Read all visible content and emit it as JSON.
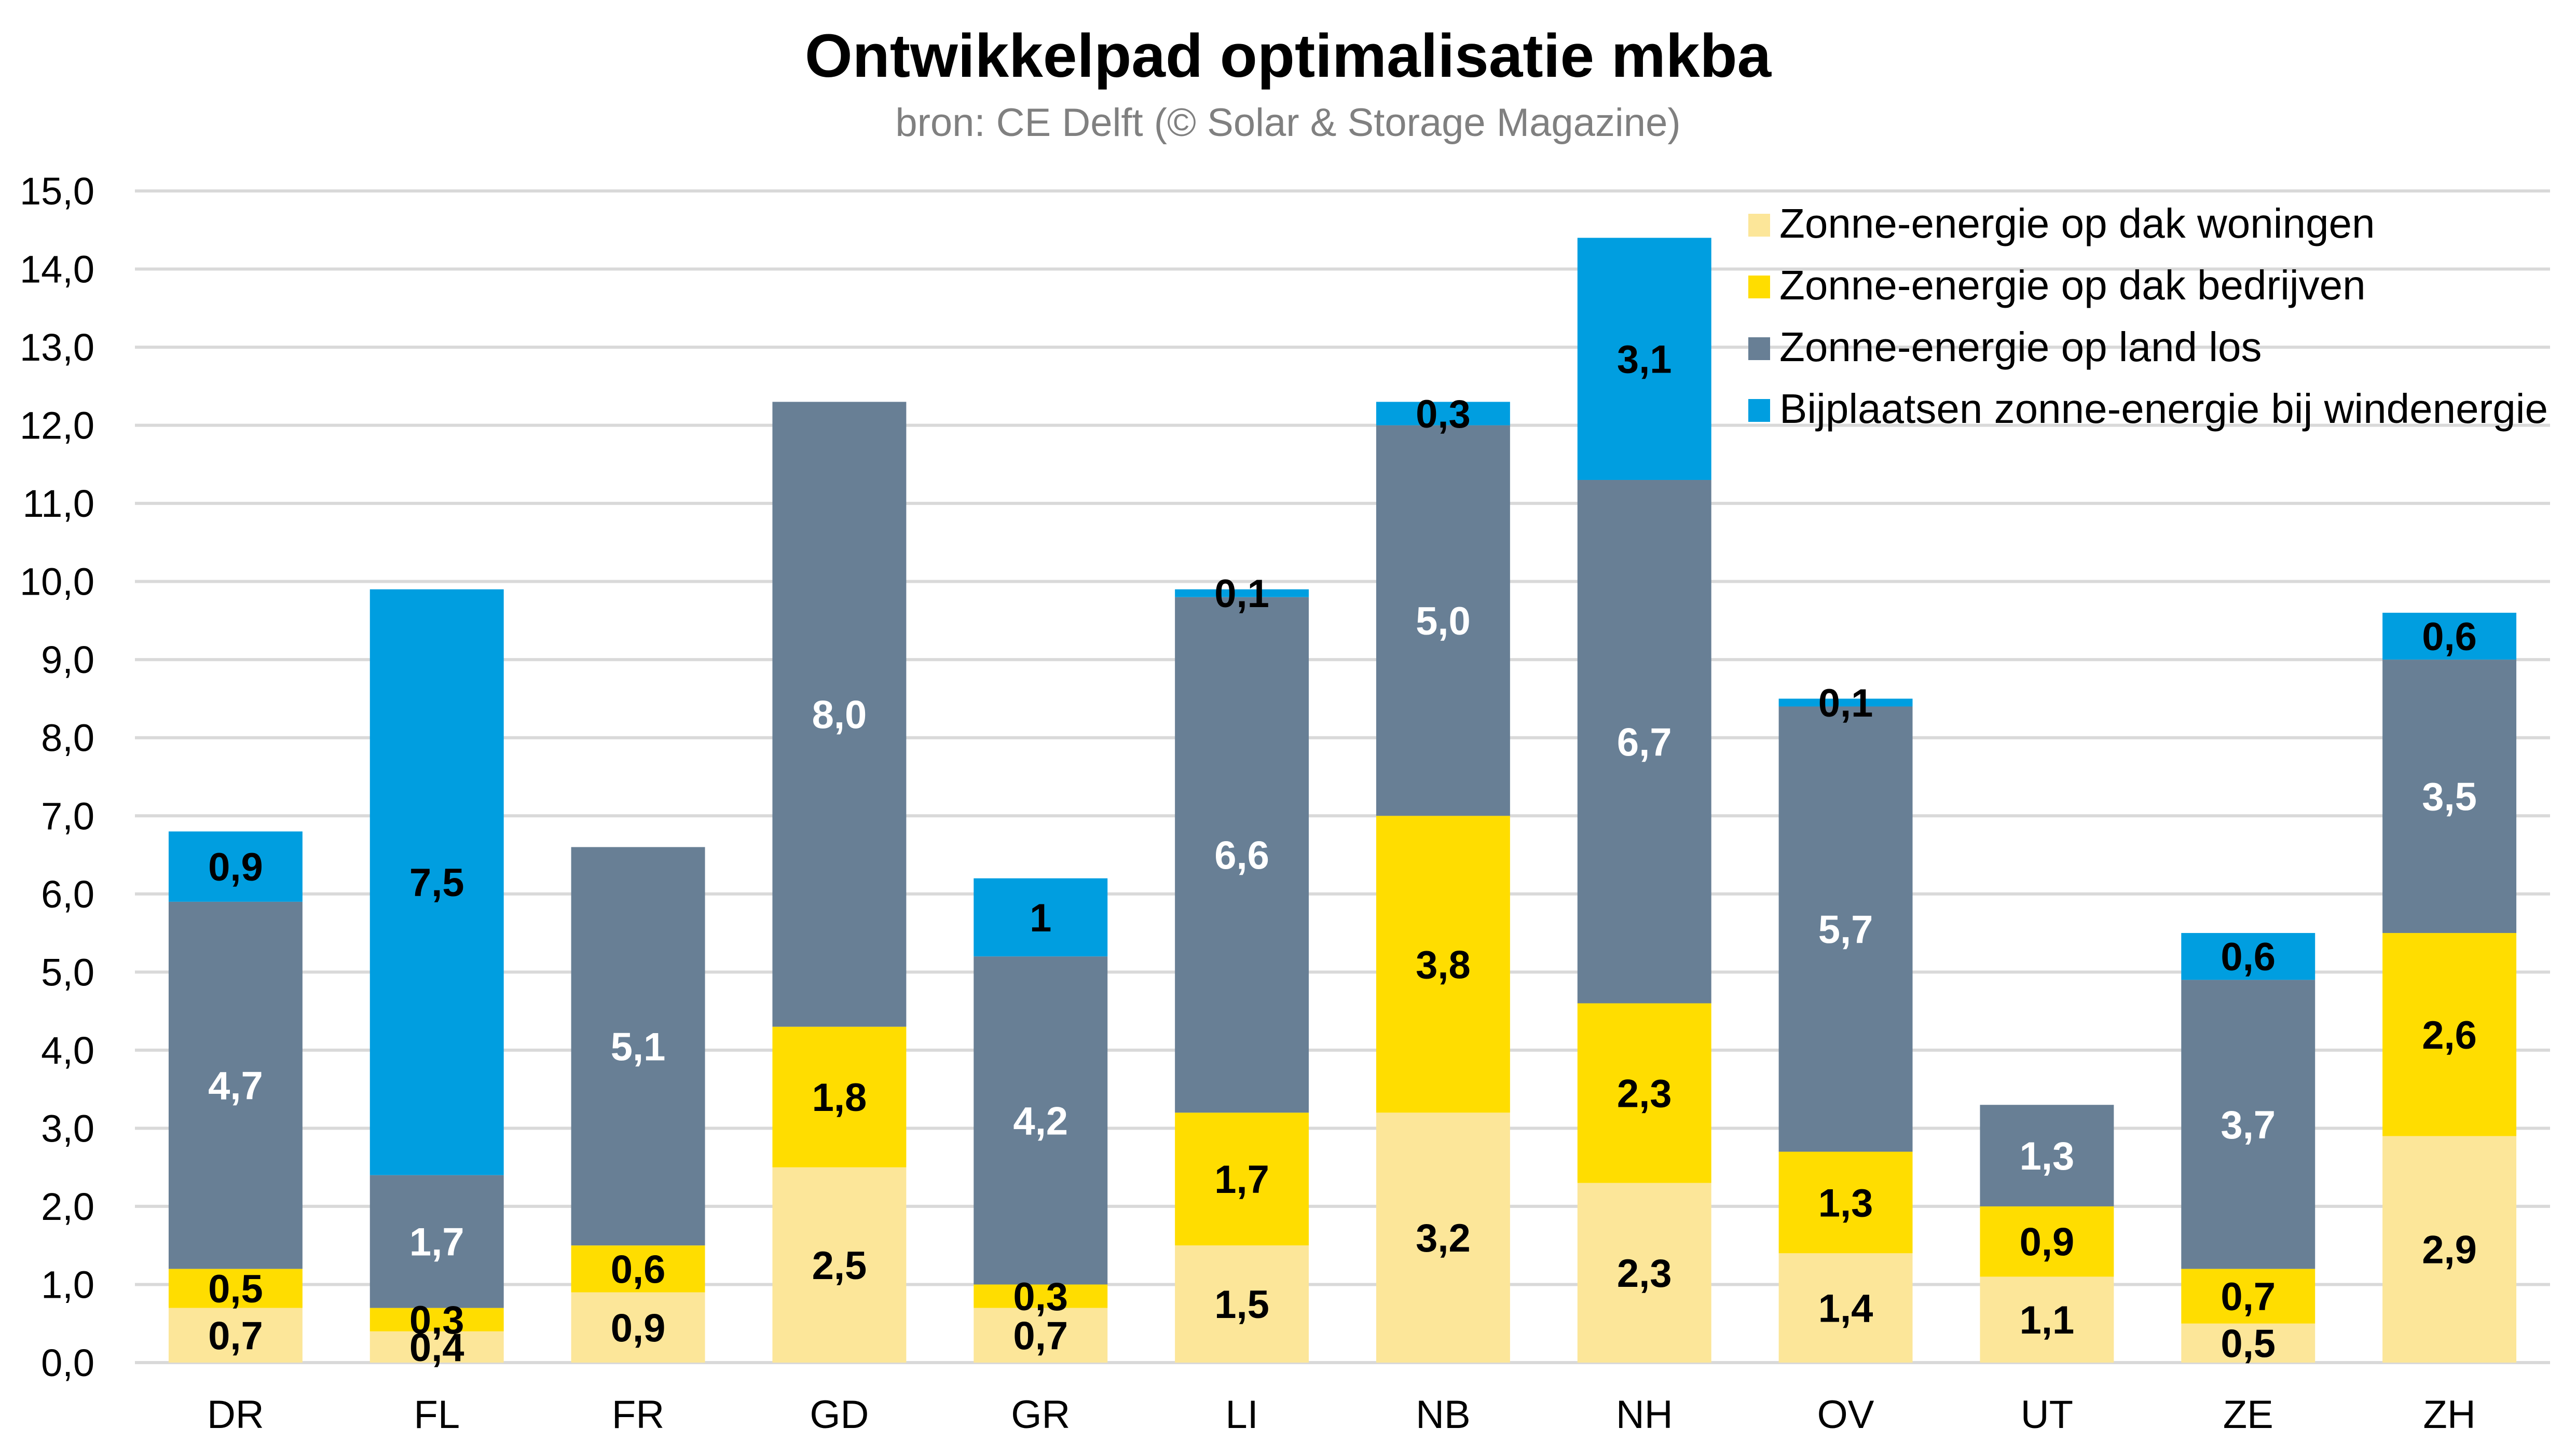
{
  "chart_data": {
    "type": "bar",
    "stacked": true,
    "title": "Ontwikkelpad optimalisatie mkba",
    "subtitle": "bron: CE Delft (© Solar & Storage Magazine)",
    "xlabel": "",
    "ylabel": "",
    "ylim": [
      0,
      15
    ],
    "yticks": [
      0,
      1,
      2,
      3,
      4,
      5,
      6,
      7,
      8,
      9,
      10,
      11,
      12,
      13,
      14,
      15
    ],
    "ytick_labels": [
      "0,0",
      "1,0",
      "2,0",
      "3,0",
      "4,0",
      "5,0",
      "6,0",
      "7,0",
      "8,0",
      "9,0",
      "10,0",
      "11,0",
      "12,0",
      "13,0",
      "14,0",
      "15,0"
    ],
    "grid": true,
    "legend_position": "top-right",
    "categories": [
      "DR",
      "FL",
      "FR",
      "GD",
      "GR",
      "LI",
      "NB",
      "NH",
      "OV",
      "UT",
      "ZE",
      "ZH"
    ],
    "series": [
      {
        "name": "Zonne-energie op dak woningen",
        "color": "#FCE699",
        "label_color": "#000000",
        "values": [
          0.7,
          0.4,
          0.9,
          2.5,
          0.7,
          1.5,
          3.2,
          2.3,
          1.4,
          1.1,
          0.5,
          2.9
        ],
        "labels": [
          "0,7",
          "0,4",
          "0,9",
          "2,5",
          "0,7",
          "1,5",
          "3,2",
          "2,3",
          "1,4",
          "1,1",
          "0,5",
          "2,9"
        ]
      },
      {
        "name": "Zonne-energie op dak bedrijven",
        "color": "#FFDD00",
        "label_color": "#000000",
        "values": [
          0.5,
          0.3,
          0.6,
          1.8,
          0.3,
          1.7,
          3.8,
          2.3,
          1.3,
          0.9,
          0.7,
          2.6
        ],
        "labels": [
          "0,5",
          "0,3",
          "0,6",
          "1,8",
          "0,3",
          "1,7",
          "3,8",
          "2,3",
          "1,3",
          "0,9",
          "0,7",
          "2,6"
        ]
      },
      {
        "name": "Zonne-energie op land los",
        "color": "#687F95",
        "label_color": "#ffffff",
        "values": [
          4.7,
          1.7,
          5.1,
          8.0,
          4.2,
          6.6,
          5.0,
          6.7,
          5.7,
          1.3,
          3.7,
          3.5
        ],
        "labels": [
          "4,7",
          "1,7",
          "5,1",
          "8,0",
          "4,2",
          "6,6",
          "5,0",
          "6,7",
          "5,7",
          "1,3",
          "3,7",
          "3,5"
        ]
      },
      {
        "name": "Bijplaatsen zonne-energie bij windenergie",
        "color": "#009EE0",
        "label_color": "#000000",
        "values": [
          0.9,
          7.5,
          0,
          0,
          1.0,
          0.1,
          0.3,
          3.1,
          0.1,
          0,
          0.6,
          0.6
        ],
        "labels": [
          "0,9",
          "7,5",
          "",
          "",
          "1",
          "0,1",
          "0,3",
          "3,1",
          "0,1",
          "",
          "0,6",
          "0,6"
        ]
      }
    ]
  }
}
